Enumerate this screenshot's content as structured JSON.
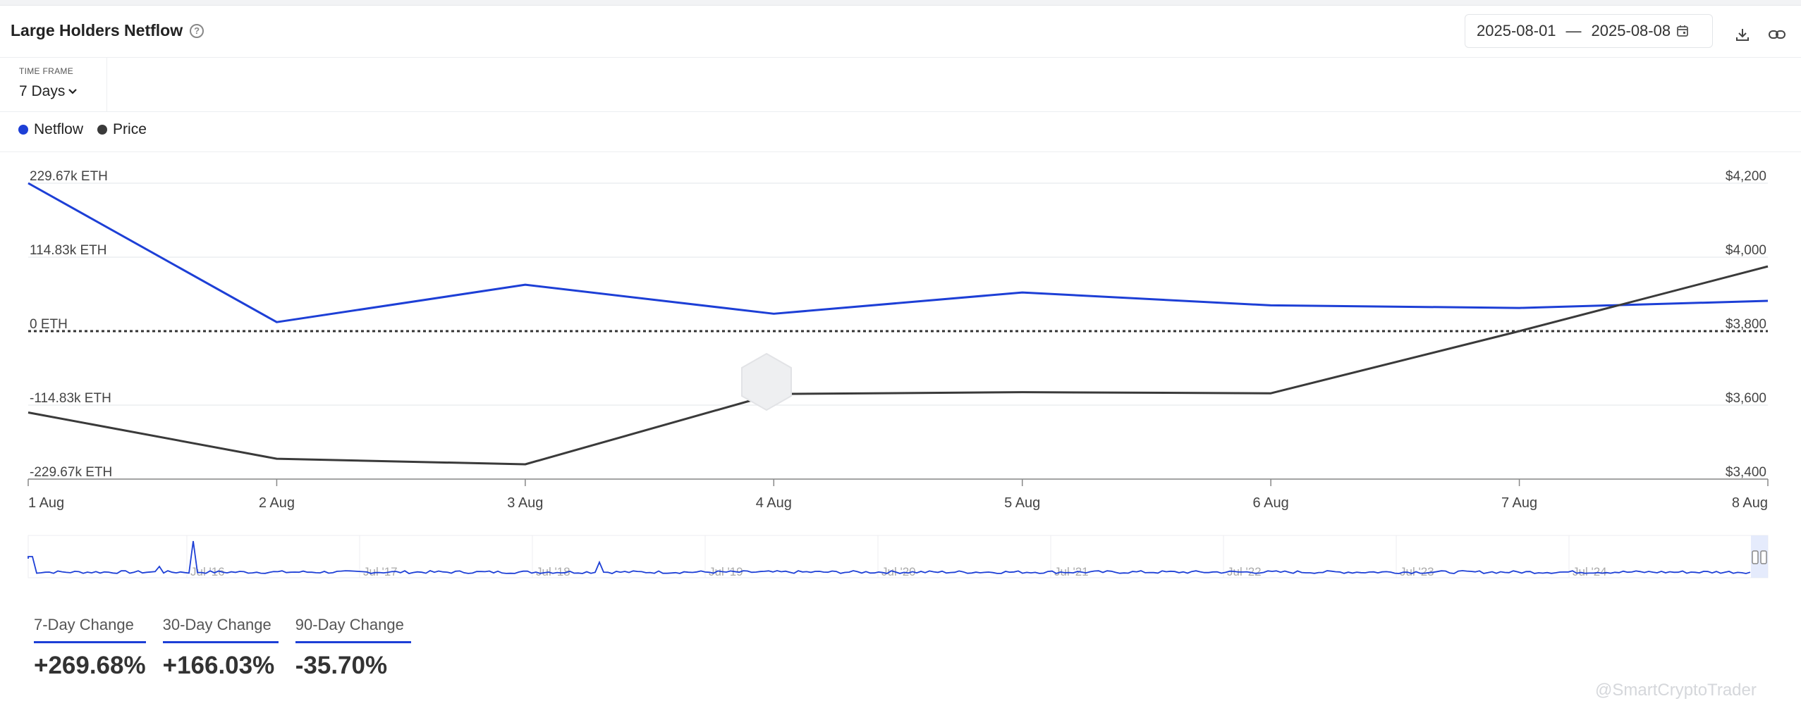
{
  "header": {
    "title": "Large Holders Netflow",
    "date_start": "2025-08-01",
    "date_sep": "—",
    "date_end": "2025-08-08"
  },
  "timeframe": {
    "label": "TIME FRAME",
    "value": "7 Days"
  },
  "legend": [
    {
      "name": "Netflow",
      "color": "#1d3fd6"
    },
    {
      "name": "Price",
      "color": "#3a3a3a"
    }
  ],
  "chart_data": {
    "type": "line",
    "x": [
      "1 Aug",
      "2 Aug",
      "3 Aug",
      "4 Aug",
      "5 Aug",
      "6 Aug",
      "7 Aug",
      "8 Aug"
    ],
    "left_axis": {
      "ticks": [
        "229.67k ETH",
        "114.83k ETH",
        "0 ETH",
        "-114.83k ETH",
        "-229.67k ETH"
      ],
      "tick_values": [
        229670,
        114830,
        0,
        -114830,
        -229670
      ],
      "ylim": [
        -229670,
        229670
      ]
    },
    "right_axis": {
      "ticks": [
        "$4,200",
        "$4,000",
        "$3,800",
        "$3,600",
        "$3,400"
      ],
      "tick_values": [
        4200,
        4000,
        3800,
        3600,
        3400
      ],
      "ylim": [
        3400,
        4200
      ]
    },
    "series": [
      {
        "name": "Netflow",
        "axis": "left",
        "color": "#1d3fd6",
        "values": [
          229670,
          14000,
          72000,
          27000,
          60000,
          40000,
          36000,
          47000
        ]
      },
      {
        "name": "Price",
        "axis": "right",
        "color": "#3a3a3a",
        "values": [
          3580,
          3455,
          3440,
          3630,
          3635,
          3632,
          3800,
          3975
        ]
      }
    ],
    "navigator": {
      "labels": [
        "Jul '16",
        "Jul '17",
        "Jul '18",
        "Jul '19",
        "Jul '20",
        "Jul '21",
        "Jul '22",
        "Jul '23",
        "Jul '24"
      ]
    },
    "grid": true,
    "zero_line": "dotted"
  },
  "changes": [
    {
      "label": "7-Day Change",
      "value": "+269.68%"
    },
    {
      "label": "30-Day Change",
      "value": "+166.03%"
    },
    {
      "label": "90-Day Change",
      "value": "-35.70%"
    }
  ],
  "watermark": "@SmartCryptoTrader",
  "icons": [
    "help-icon",
    "calendar-icon",
    "download-icon",
    "link-icon",
    "chevron-down-icon"
  ]
}
